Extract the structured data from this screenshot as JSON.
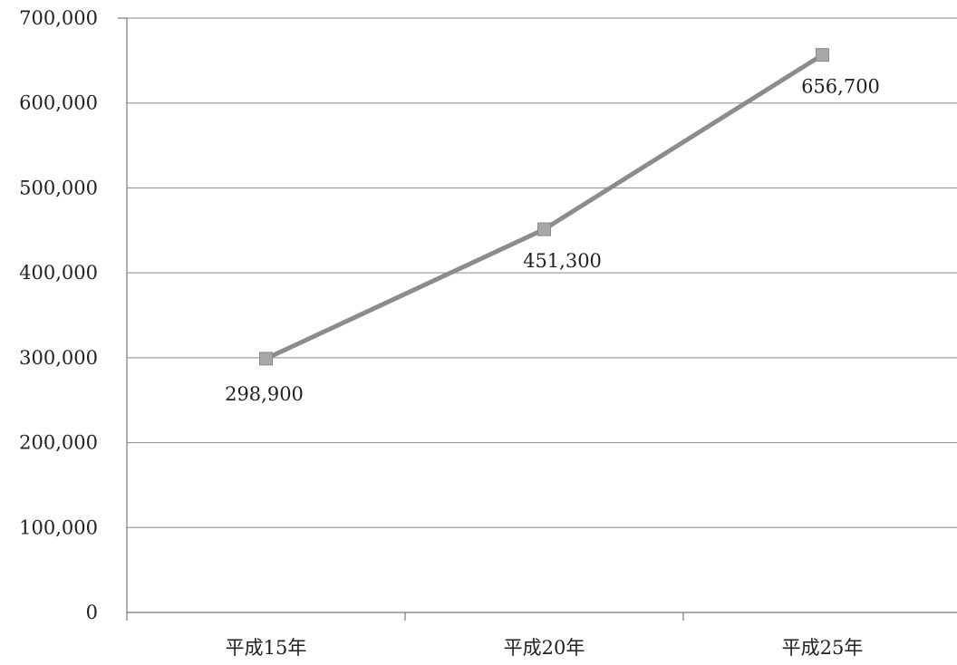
{
  "chart_data": {
    "type": "line",
    "categories": [
      "平成15年",
      "平成20年",
      "平成25年"
    ],
    "series": [
      {
        "values": [
          298900,
          451300,
          656700
        ]
      }
    ],
    "data_labels": [
      "298,900",
      "451,300",
      "656,700"
    ],
    "y_ticks": [
      0,
      100000,
      200000,
      300000,
      400000,
      500000,
      600000,
      700000
    ],
    "y_tick_labels": [
      "0",
      "100,000",
      "200,000",
      "300,000",
      "400,000",
      "500,000",
      "600,000",
      "700,000"
    ],
    "ylim": [
      0,
      700000
    ],
    "grid": true,
    "legend": "none",
    "title": "",
    "xlabel": "",
    "ylabel": "",
    "colors": {
      "line": "#8c8c8c",
      "marker": "#a8a8a8",
      "grid": "#8a8a8a",
      "axis": "#777777"
    },
    "marker": "square"
  }
}
